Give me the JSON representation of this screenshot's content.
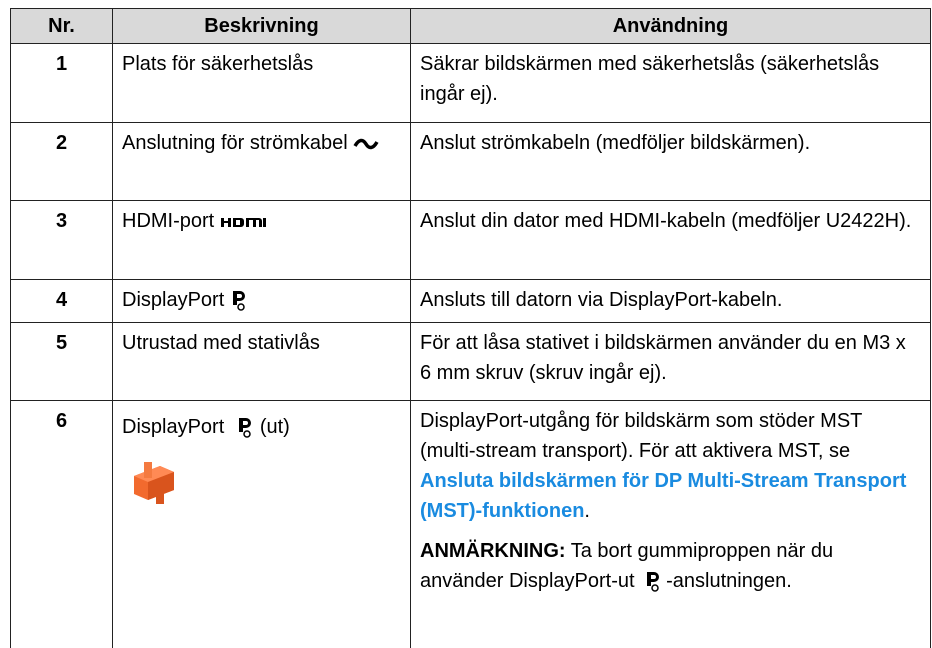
{
  "table": {
    "header": [
      "Nr.",
      "Beskrivning",
      "Användning"
    ],
    "rows": [
      {
        "nr": "1",
        "description": "Plats för säkerhetslås",
        "usage": "Säkrar bildskärmen med säkerhetslås (säkerhetslås ingår ej)."
      },
      {
        "nr": "2",
        "description": "Anslutning för strömkabel",
        "usage": "Anslut strömkabeln (medföljer bildskärmen)."
      },
      {
        "nr": "3",
        "description": "HDMI-port",
        "usage": "Anslut din dator med HDMI-kabeln (medföljer U2422H)."
      },
      {
        "nr": "4",
        "description": "DisplayPort",
        "usage": "Ansluts till datorn via DisplayPort-kabeln."
      },
      {
        "nr": "5",
        "description": "Utrustad med stativlås",
        "usage": "För att låsa stativet i bildskärmen använder du en M3 x 6 mm skruv (skruv ingår ej)."
      },
      {
        "nr": "6",
        "description": "DisplayPort",
        "description_suffix": "(ut)",
        "usage": "DisplayPort-utgång för bildskärm som stöder MST (multi-stream transport). För att aktivera MST, se ",
        "link": "Ansluta bildskärmen för DP Multi-Stream Transport (MST)-funktionen",
        "usage_after": ".",
        "note_label": "ANMÄRKNING:",
        "note_text": "Ta bort gummiproppen när du använder DisplayPort-ut",
        "note_text_after": "-anslutningen."
      }
    ]
  }
}
